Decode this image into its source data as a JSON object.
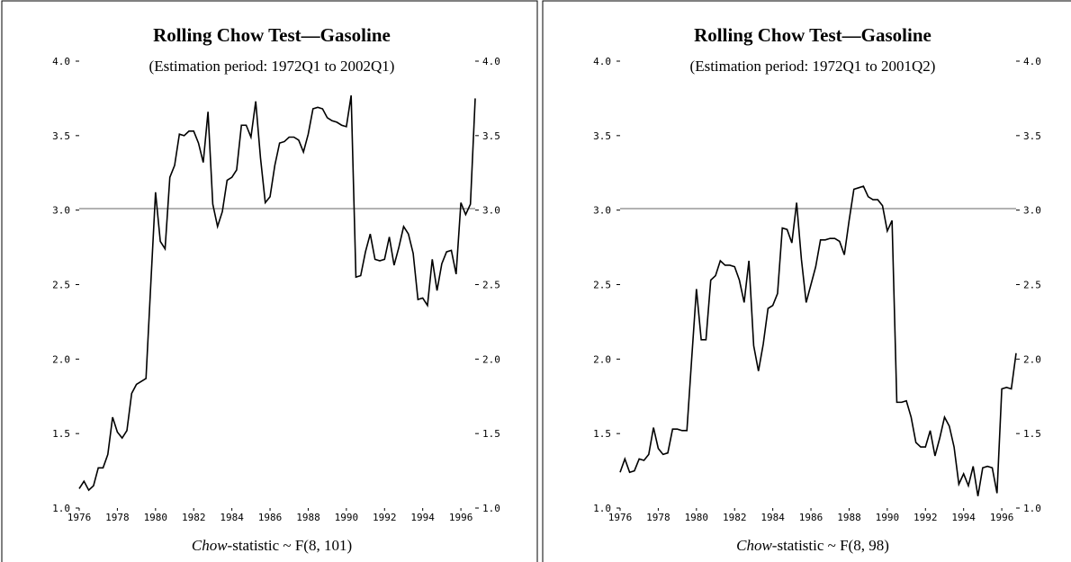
{
  "chart_data": [
    {
      "type": "line",
      "title": "Rolling Chow Test—Gasoline",
      "subtitle": "(Estimation period: 1972Q1 to 2002Q1)",
      "x_label": {
        "italic": "Chow",
        "rest": "-statistic ~ F(8, 101)"
      },
      "x": [
        1976,
        1976.25,
        1976.5,
        1976.75,
        1977,
        1977.25,
        1977.5,
        1977.75,
        1978,
        1978.25,
        1978.5,
        1978.75,
        1979,
        1979.25,
        1979.5,
        1979.75,
        1980,
        1980.25,
        1980.5,
        1980.75,
        1981,
        1981.25,
        1981.5,
        1981.75,
        1982,
        1982.25,
        1982.5,
        1982.75,
        1983,
        1983.25,
        1983.5,
        1983.75,
        1984,
        1984.25,
        1984.5,
        1984.75,
        1985,
        1985.25,
        1985.5,
        1985.75,
        1986,
        1986.25,
        1986.5,
        1986.75,
        1987,
        1987.25,
        1987.5,
        1987.75,
        1988,
        1988.25,
        1988.5,
        1988.75,
        1989,
        1989.25,
        1989.5,
        1989.75,
        1990,
        1990.25,
        1990.5,
        1990.75,
        1991,
        1991.25,
        1991.5,
        1991.75,
        1992,
        1992.25,
        1992.5,
        1992.75,
        1993,
        1993.25,
        1993.5,
        1993.75,
        1994,
        1994.25,
        1994.5,
        1994.75,
        1995,
        1995.25,
        1995.5,
        1995.75,
        1996,
        1996.25,
        1996.5,
        1996.75
      ],
      "series": [
        {
          "color": "#000000",
          "values": [
            1.13,
            1.18,
            1.12,
            1.15,
            1.27,
            1.27,
            1.36,
            1.61,
            1.51,
            1.47,
            1.52,
            1.77,
            1.83,
            1.85,
            1.87,
            2.5,
            3.12,
            2.79,
            2.74,
            3.22,
            3.3,
            3.51,
            3.5,
            3.53,
            3.53,
            3.45,
            3.32,
            3.66,
            3.04,
            2.89,
            2.99,
            3.2,
            3.22,
            3.27,
            3.57,
            3.57,
            3.49,
            3.73,
            3.35,
            3.05,
            3.09,
            3.3,
            3.45,
            3.46,
            3.49,
            3.49,
            3.47,
            3.39,
            3.51,
            3.68,
            3.69,
            3.68,
            3.62,
            3.6,
            3.59,
            3.57,
            3.56,
            3.77,
            2.55,
            2.56,
            2.72,
            2.84,
            2.67,
            2.66,
            2.67,
            2.82,
            2.63,
            2.75,
            2.89,
            2.84,
            2.71,
            2.4,
            2.41,
            2.36,
            2.67,
            2.46,
            2.64,
            2.72,
            2.73,
            2.57,
            3.05,
            2.97,
            3.04,
            3.75
          ]
        }
      ],
      "hline": 3.01,
      "xlim": [
        1976,
        1996.75
      ],
      "xticks": [
        1976,
        1978,
        1980,
        1982,
        1984,
        1986,
        1988,
        1990,
        1992,
        1994,
        1996
      ],
      "ylim": [
        1,
        4
      ],
      "yticks": [
        {
          "value": 1,
          "label": "1.0"
        },
        {
          "value": 1.5,
          "label": "1.5"
        },
        {
          "value": 2,
          "label": "2.0"
        },
        {
          "value": 2.5,
          "label": "2.5"
        },
        {
          "value": 3,
          "label": "3.0"
        },
        {
          "value": 3.5,
          "label": "3.5"
        },
        {
          "value": 4,
          "label": "4.0"
        }
      ],
      "y2lim": [
        1,
        4
      ],
      "y2ticks": [
        {
          "value": 1,
          "label": "1.0"
        },
        {
          "value": 1.5,
          "label": "1.5"
        },
        {
          "value": 2,
          "label": "2.0"
        },
        {
          "value": 2.5,
          "label": "2.5"
        },
        {
          "value": 3,
          "label": "3.0"
        },
        {
          "value": 3.5,
          "label": "3.5"
        },
        {
          "value": 4,
          "label": "4.0"
        }
      ]
    },
    {
      "type": "line",
      "title": "Rolling Chow Test—Gasoline",
      "subtitle": "(Estimation period: 1972Q1 to 2001Q2)",
      "x_label": {
        "italic": "Chow",
        "rest": "-statistic ~ F(8, 98)"
      },
      "x": [
        1976,
        1976.25,
        1976.5,
        1976.75,
        1977,
        1977.25,
        1977.5,
        1977.75,
        1978,
        1978.25,
        1978.5,
        1978.75,
        1979,
        1979.25,
        1979.5,
        1979.75,
        1980,
        1980.25,
        1980.5,
        1980.75,
        1981,
        1981.25,
        1981.5,
        1981.75,
        1982,
        1982.25,
        1982.5,
        1982.75,
        1983,
        1983.25,
        1983.5,
        1983.75,
        1984,
        1984.25,
        1984.5,
        1984.75,
        1985,
        1985.25,
        1985.5,
        1985.75,
        1986,
        1986.25,
        1986.5,
        1986.75,
        1987,
        1987.25,
        1987.5,
        1987.75,
        1988,
        1988.25,
        1988.5,
        1988.75,
        1989,
        1989.25,
        1989.5,
        1989.75,
        1990,
        1990.25,
        1990.5,
        1990.75,
        1991,
        1991.25,
        1991.5,
        1991.75,
        1992,
        1992.25,
        1992.5,
        1992.75,
        1993,
        1993.25,
        1993.5,
        1993.75,
        1994,
        1994.25,
        1994.5,
        1994.75,
        1995,
        1995.25,
        1995.5,
        1995.75,
        1996,
        1996.25,
        1996.5,
        1996.75
      ],
      "series": [
        {
          "color": "#000000",
          "values": [
            1.24,
            1.33,
            1.24,
            1.25,
            1.33,
            1.32,
            1.36,
            1.54,
            1.4,
            1.36,
            1.37,
            1.53,
            1.53,
            1.52,
            1.52,
            2.0,
            2.47,
            2.13,
            2.13,
            2.53,
            2.56,
            2.66,
            2.63,
            2.63,
            2.62,
            2.53,
            2.38,
            2.66,
            2.09,
            1.92,
            2.1,
            2.34,
            2.36,
            2.44,
            2.88,
            2.87,
            2.78,
            3.05,
            2.67,
            2.38,
            2.5,
            2.62,
            2.8,
            2.8,
            2.81,
            2.81,
            2.79,
            2.7,
            2.93,
            3.14,
            3.15,
            3.16,
            3.09,
            3.07,
            3.07,
            3.03,
            2.86,
            2.93,
            1.71,
            1.71,
            1.72,
            1.61,
            1.44,
            1.41,
            1.41,
            1.52,
            1.35,
            1.47,
            1.61,
            1.55,
            1.41,
            1.16,
            1.23,
            1.15,
            1.28,
            1.08,
            1.27,
            1.28,
            1.27,
            1.1,
            1.8,
            1.81,
            1.8,
            2.04
          ]
        }
      ],
      "hline": 3.01,
      "xlim": [
        1976,
        1996.75
      ],
      "xticks": [
        1976,
        1978,
        1980,
        1982,
        1984,
        1986,
        1988,
        1990,
        1992,
        1994,
        1996
      ],
      "ylim": [
        1,
        4
      ],
      "yticks": [
        {
          "value": 1,
          "label": "1.0"
        },
        {
          "value": 1.5,
          "label": "1.5"
        },
        {
          "value": 2,
          "label": "2.0"
        },
        {
          "value": 2.5,
          "label": "2.5"
        },
        {
          "value": 3,
          "label": "3.0"
        },
        {
          "value": 3.5,
          "label": "3.5"
        },
        {
          "value": 4,
          "label": "4.0"
        }
      ],
      "y2lim": [
        1,
        4
      ],
      "y2ticks": [
        {
          "value": 1,
          "label": "1.0"
        },
        {
          "value": 1.5,
          "label": "1.5"
        },
        {
          "value": 2,
          "label": "2.0"
        },
        {
          "value": 2.5,
          "label": "2.5"
        },
        {
          "value": 3,
          "label": "3.0"
        },
        {
          "value": 3.5,
          "label": "3.5"
        },
        {
          "value": 4,
          "label": "4.0"
        }
      ]
    }
  ]
}
